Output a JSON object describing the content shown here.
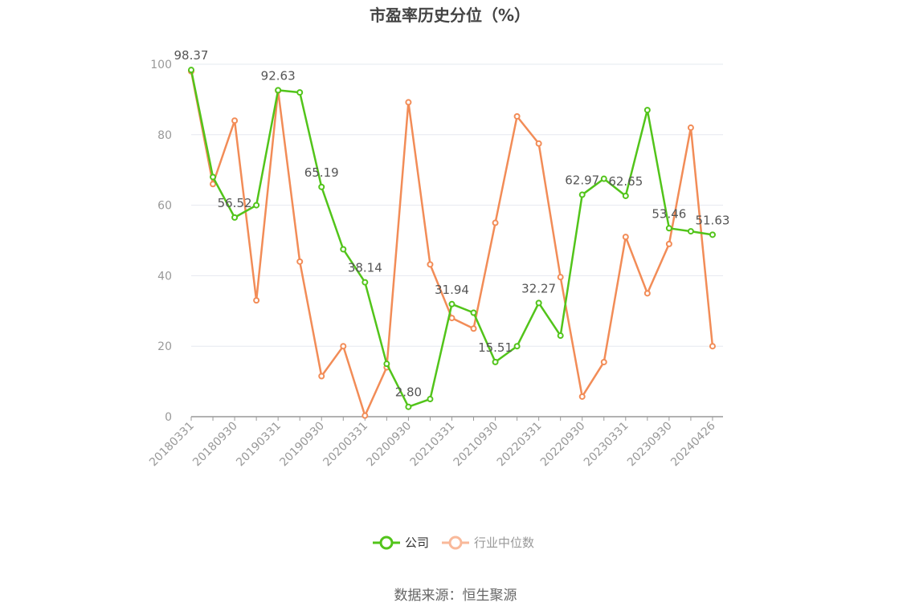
{
  "chart_data": {
    "type": "line",
    "title": "市盈率历史分位（%）",
    "ylim": [
      0,
      100
    ],
    "y_ticks": [
      "0",
      "20",
      "40",
      "60",
      "80",
      "100"
    ],
    "x_tick_labels": [
      "20180331",
      "20180930",
      "20190331",
      "20190930",
      "20200331",
      "20200930",
      "20210331",
      "20210930",
      "20220331",
      "20220930",
      "20230331",
      "20230930",
      "20240426"
    ],
    "grid": true,
    "legend_position": "bottom",
    "series": [
      {
        "name": "公司",
        "color": "#52c41a",
        "values": [
          98.37,
          68,
          56.52,
          60,
          92.63,
          92,
          65.19,
          47.5,
          38.14,
          15,
          2.8,
          5,
          31.94,
          29.5,
          15.51,
          20,
          32.27,
          23,
          62.97,
          67.5,
          62.65,
          87,
          53.46,
          52.6,
          51.63
        ],
        "labels": [
          "98.37",
          "",
          "56.52",
          "",
          "92.63",
          "",
          "65.19",
          "",
          "38.14",
          "",
          "2.80",
          "",
          "31.94",
          "",
          "15.51",
          "",
          "32.27",
          "",
          "62.97",
          "",
          "62.65",
          "",
          "53.46",
          "",
          "51.63"
        ]
      },
      {
        "name": "行业中位数",
        "color": "#f28c57",
        "values": [
          98,
          66,
          84,
          33,
          92.5,
          44,
          11.5,
          20,
          0.3,
          14,
          89.2,
          43.2,
          28,
          25,
          55,
          85.2,
          77.5,
          39.6,
          5.7,
          15.5,
          51,
          35,
          49,
          82,
          20
        ]
      }
    ]
  },
  "legend": {
    "items": [
      {
        "label": "公司",
        "color": "#52c41a"
      },
      {
        "label": "行业中位数",
        "color": "#f9b99a"
      }
    ]
  },
  "source": "数据来源：恒生聚源"
}
